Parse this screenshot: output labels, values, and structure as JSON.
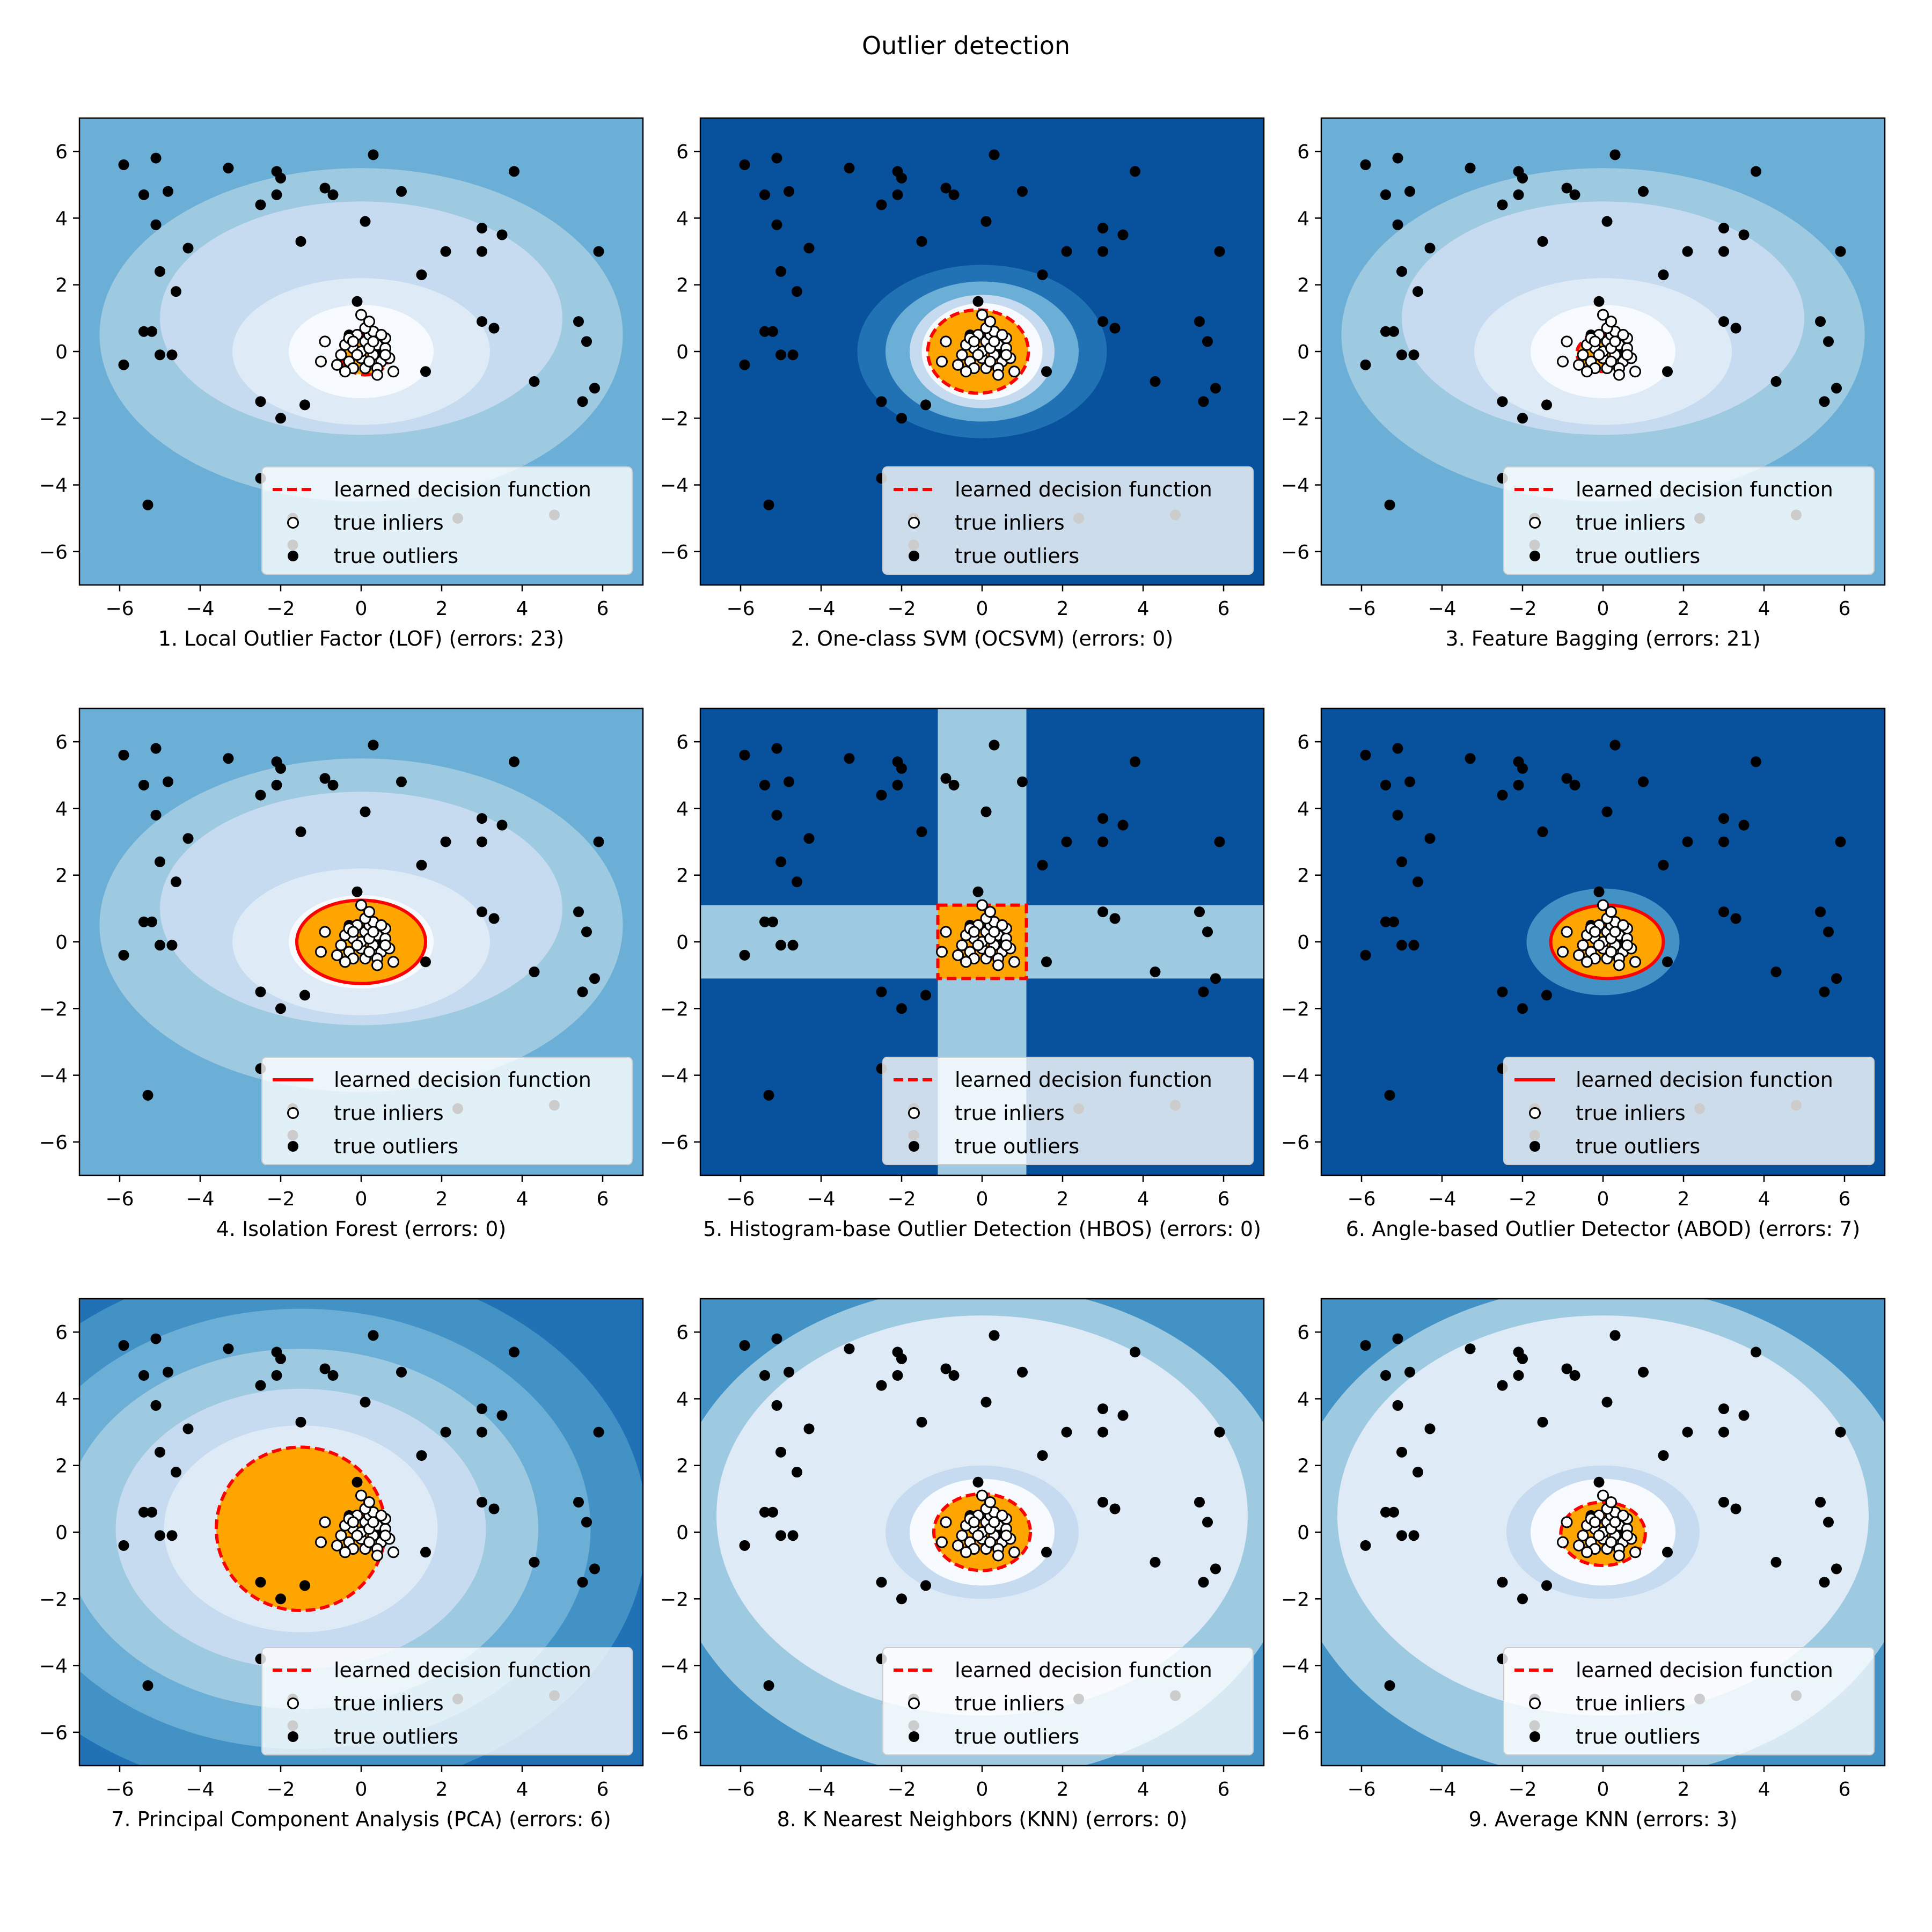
{
  "title": "Outlier detection",
  "legend_labels": {
    "decision": "learned decision function",
    "inliers": "true inliers",
    "outliers": "true outliers"
  },
  "colors": {
    "contour_levels_light_to_dark": [
      "#f7fbff",
      "#deebf7",
      "#c6dbef",
      "#9ecae1",
      "#6baed6",
      "#4292c6",
      "#2171b5",
      "#08519c",
      "#08306b"
    ],
    "inlier_region": "#ffa500",
    "decision_line": "#ff0000",
    "inlier_marker_fill": "#ffffff",
    "outlier_marker_fill": "#000000"
  },
  "chart_data": [
    {
      "type": "scatter",
      "caption": "1. Local Outlier Factor (LOF) (errors: 23)",
      "decision_style": "dashed",
      "background": "bands",
      "xlim": [
        -7,
        7
      ],
      "ylim": [
        -7,
        7
      ],
      "x_ticks": [
        -6,
        -4,
        -2,
        0,
        2,
        4,
        6
      ],
      "y_ticks": [
        -6,
        -4,
        -2,
        0,
        2,
        4,
        6
      ],
      "inlier_region": {
        "shape": "ellipse",
        "cx": 0.1,
        "cy": -0.1,
        "rx": 0.6,
        "ry": 0.6
      }
    },
    {
      "type": "scatter",
      "caption": "2. One-class SVM (OCSVM) (errors: 0)",
      "decision_style": "dashed",
      "background": "dark",
      "xlim": [
        -7,
        7
      ],
      "ylim": [
        -7,
        7
      ],
      "x_ticks": [
        -6,
        -4,
        -2,
        0,
        2,
        4,
        6
      ],
      "y_ticks": [
        -6,
        -4,
        -2,
        0,
        2,
        4,
        6
      ],
      "inlier_region": {
        "shape": "ellipse",
        "cx": -0.1,
        "cy": 0.0,
        "rx": 1.25,
        "ry": 1.25
      }
    },
    {
      "type": "scatter",
      "caption": "3. Feature Bagging (errors: 21)",
      "decision_style": "dashed",
      "background": "bands",
      "xlim": [
        -7,
        7
      ],
      "ylim": [
        -7,
        7
      ],
      "x_ticks": [
        -6,
        -4,
        -2,
        0,
        2,
        4,
        6
      ],
      "y_ticks": [
        -6,
        -4,
        -2,
        0,
        2,
        4,
        6
      ],
      "inlier_region": {
        "shape": "ellipse",
        "cx": 0.0,
        "cy": -0.05,
        "rx": 0.65,
        "ry": 0.55
      }
    },
    {
      "type": "scatter",
      "caption": "4. Isolation Forest (errors: 0)",
      "decision_style": "solid",
      "background": "bands",
      "xlim": [
        -7,
        7
      ],
      "ylim": [
        -7,
        7
      ],
      "x_ticks": [
        -6,
        -4,
        -2,
        0,
        2,
        4,
        6
      ],
      "y_ticks": [
        -6,
        -4,
        -2,
        0,
        2,
        4,
        6
      ],
      "inlier_region": {
        "shape": "ellipse",
        "cx": 0.0,
        "cy": 0.0,
        "rx": 1.6,
        "ry": 1.25
      }
    },
    {
      "type": "scatter",
      "caption": "5. Histogram-base Outlier Detection (HBOS) (errors: 0)",
      "decision_style": "dashed",
      "background": "dark",
      "xlim": [
        -7,
        7
      ],
      "ylim": [
        -7,
        7
      ],
      "x_ticks": [
        -6,
        -4,
        -2,
        0,
        2,
        4,
        6
      ],
      "y_ticks": [
        -6,
        -4,
        -2,
        0,
        2,
        4,
        6
      ],
      "inlier_region": {
        "shape": "rect",
        "x0": -1.1,
        "x1": 1.1,
        "y0": -1.1,
        "y1": 1.1
      }
    },
    {
      "type": "scatter",
      "caption": "6. Angle-based Outlier Detector (ABOD) (errors: 7)",
      "decision_style": "solid",
      "background": "dark",
      "xlim": [
        -7,
        7
      ],
      "ylim": [
        -7,
        7
      ],
      "x_ticks": [
        -6,
        -4,
        -2,
        0,
        2,
        4,
        6
      ],
      "y_ticks": [
        -6,
        -4,
        -2,
        0,
        2,
        4,
        6
      ],
      "inlier_region": {
        "shape": "ellipse",
        "cx": 0.1,
        "cy": 0.0,
        "rx": 1.4,
        "ry": 1.1
      }
    },
    {
      "type": "scatter",
      "caption": "7. Principal Component Analysis (PCA) (errors: 6)",
      "decision_style": "dashed",
      "background": "rings",
      "xlim": [
        -7,
        7
      ],
      "ylim": [
        -7,
        7
      ],
      "x_ticks": [
        -6,
        -4,
        -2,
        0,
        2,
        4,
        6
      ],
      "y_ticks": [
        -6,
        -4,
        -2,
        0,
        2,
        4,
        6
      ],
      "inlier_region": {
        "shape": "ellipse",
        "cx": -1.5,
        "cy": 0.1,
        "rx": 2.1,
        "ry": 2.45
      }
    },
    {
      "type": "scatter",
      "caption": "8. K Nearest Neighbors (KNN) (errors: 0)",
      "decision_style": "dashed",
      "background": "light",
      "xlim": [
        -7,
        7
      ],
      "ylim": [
        -7,
        7
      ],
      "x_ticks": [
        -6,
        -4,
        -2,
        0,
        2,
        4,
        6
      ],
      "y_ticks": [
        -6,
        -4,
        -2,
        0,
        2,
        4,
        6
      ],
      "inlier_region": {
        "shape": "ellipse",
        "cx": 0.0,
        "cy": 0.0,
        "rx": 1.2,
        "ry": 1.15
      }
    },
    {
      "type": "scatter",
      "caption": "9. Average KNN (errors: 3)",
      "decision_style": "dashed",
      "background": "light",
      "xlim": [
        -7,
        7
      ],
      "ylim": [
        -7,
        7
      ],
      "x_ticks": [
        -6,
        -4,
        -2,
        0,
        2,
        4,
        6
      ],
      "y_ticks": [
        -6,
        -4,
        -2,
        0,
        2,
        4,
        6
      ],
      "inlier_region": {
        "shape": "ellipse",
        "cx": 0.0,
        "cy": -0.05,
        "rx": 1.05,
        "ry": 0.95
      }
    }
  ],
  "outliers": [
    [
      -5.9,
      5.6
    ],
    [
      -5.4,
      4.7
    ],
    [
      -5.1,
      5.8
    ],
    [
      -4.8,
      4.8
    ],
    [
      -5.1,
      3.8
    ],
    [
      -3.3,
      5.5
    ],
    [
      -2.1,
      5.4
    ],
    [
      -2.5,
      4.4
    ],
    [
      -2.1,
      4.7
    ],
    [
      -2.0,
      5.2
    ],
    [
      -0.9,
      4.9
    ],
    [
      -0.7,
      4.7
    ],
    [
      0.3,
      5.9
    ],
    [
      1.0,
      4.8
    ],
    [
      0.1,
      3.9
    ],
    [
      -1.5,
      3.3
    ],
    [
      -4.3,
      3.1
    ],
    [
      -5.0,
      2.4
    ],
    [
      -4.6,
      1.8
    ],
    [
      3.0,
      3.7
    ],
    [
      3.0,
      3.0
    ],
    [
      3.5,
      3.5
    ],
    [
      2.1,
      3.0
    ],
    [
      1.5,
      2.3
    ],
    [
      5.9,
      3.0
    ],
    [
      3.8,
      5.4
    ],
    [
      -5.4,
      0.6
    ],
    [
      -5.2,
      0.6
    ],
    [
      -5.0,
      -0.1
    ],
    [
      -4.7,
      -0.1
    ],
    [
      -5.9,
      -0.4
    ],
    [
      -2.5,
      -1.5
    ],
    [
      -2.5,
      -3.8
    ],
    [
      -2.0,
      -2.0
    ],
    [
      -1.4,
      -1.6
    ],
    [
      1.6,
      -0.6
    ],
    [
      3.0,
      0.9
    ],
    [
      3.3,
      0.7
    ],
    [
      4.3,
      -0.9
    ],
    [
      5.4,
      0.9
    ],
    [
      5.6,
      0.3
    ],
    [
      5.5,
      -1.5
    ],
    [
      5.8,
      -1.1
    ],
    [
      -5.3,
      -4.6
    ],
    [
      -1.7,
      -5.0
    ],
    [
      -1.7,
      -5.8
    ],
    [
      2.4,
      -5.0
    ],
    [
      4.8,
      -4.9
    ],
    [
      -0.1,
      1.5
    ],
    [
      -0.3,
      0.5
    ],
    [
      0.5,
      0.0
    ]
  ],
  "inliers": [
    [
      -0.2,
      0.1
    ],
    [
      0.1,
      0.3
    ],
    [
      0.3,
      -0.1
    ],
    [
      0.0,
      -0.2
    ],
    [
      -0.3,
      -0.3
    ],
    [
      0.2,
      0.5
    ],
    [
      0.4,
      0.2
    ],
    [
      -0.1,
      0.5
    ],
    [
      0.5,
      -0.3
    ],
    [
      -0.4,
      0.2
    ],
    [
      0.1,
      -0.5
    ],
    [
      0.3,
      0.6
    ],
    [
      -0.2,
      -0.5
    ],
    [
      0.6,
      0.1
    ],
    [
      0.2,
      -0.3
    ],
    [
      -0.5,
      -0.1
    ],
    [
      0.0,
      0.0
    ],
    [
      0.4,
      -0.5
    ],
    [
      -0.3,
      0.4
    ],
    [
      0.6,
      0.4
    ],
    [
      0.2,
      0.1
    ],
    [
      -0.1,
      -0.1
    ],
    [
      0.3,
      0.3
    ],
    [
      0.5,
      0.5
    ],
    [
      -0.6,
      -0.4
    ],
    [
      0.7,
      -0.2
    ],
    [
      0.1,
      0.7
    ],
    [
      -0.2,
      0.3
    ],
    [
      0.0,
      1.1
    ],
    [
      -1.0,
      -0.3
    ],
    [
      -0.9,
      0.3
    ],
    [
      0.8,
      -0.6
    ],
    [
      0.4,
      -0.7
    ],
    [
      -0.4,
      -0.6
    ],
    [
      0.6,
      -0.1
    ],
    [
      0.2,
      0.9
    ]
  ]
}
